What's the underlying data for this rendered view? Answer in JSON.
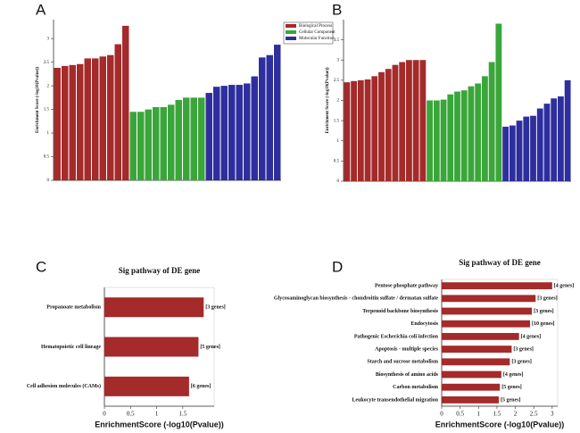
{
  "chart_data": [
    {
      "type": "bar",
      "panel": "A",
      "ylabel": "Enrichment Score (-log10(Pvalue))",
      "categories": [
        null,
        null,
        null,
        null,
        null,
        null,
        null,
        null,
        null,
        null,
        null,
        null,
        null,
        null,
        null,
        null,
        null,
        null,
        null,
        null,
        null,
        null,
        null,
        null,
        null,
        null,
        null,
        null,
        null,
        null
      ],
      "series": [
        {
          "name": "Biological Process",
          "color": "#a52a2a",
          "values": [
            2.38,
            2.42,
            2.44,
            2.46,
            2.58,
            2.58,
            2.62,
            2.65,
            2.88,
            3.27,
            null,
            null,
            null,
            null,
            null,
            null,
            null,
            null,
            null,
            null,
            null,
            null,
            null,
            null,
            null,
            null,
            null,
            null,
            null,
            null
          ]
        },
        {
          "name": "Cellular Component",
          "color": "#3aa63a",
          "values": [
            null,
            null,
            null,
            null,
            null,
            null,
            null,
            null,
            null,
            null,
            1.45,
            1.45,
            1.5,
            1.55,
            1.55,
            1.6,
            1.7,
            1.75,
            1.75,
            1.75,
            null,
            null,
            null,
            null,
            null,
            null,
            null,
            null,
            null,
            null
          ]
        },
        {
          "name": "Molecular Function",
          "color": "#2e2e9e",
          "values": [
            null,
            null,
            null,
            null,
            null,
            null,
            null,
            null,
            null,
            null,
            null,
            null,
            null,
            null,
            null,
            null,
            null,
            null,
            null,
            null,
            1.85,
            1.98,
            2.0,
            2.02,
            2.02,
            2.05,
            2.2,
            2.6,
            2.65,
            2.87
          ]
        }
      ],
      "ylim": [
        0,
        3.4
      ],
      "yticks": [
        0,
        0.5,
        1,
        1.5,
        2,
        2.5,
        3
      ],
      "legend": "upper right"
    },
    {
      "type": "bar",
      "panel": "B",
      "ylabel": "Enrichment Score (-log10(Pvalue))",
      "categories": [
        null,
        null,
        null,
        null,
        null,
        null,
        null,
        null,
        null,
        null,
        null,
        null,
        null,
        null,
        null,
        null,
        null,
        null,
        null,
        null,
        null,
        null,
        null,
        null,
        null,
        null,
        null,
        null,
        null,
        null,
        null,
        null,
        null
      ],
      "series": [
        {
          "color": "#a52a2a",
          "values": [
            2.45,
            2.48,
            2.5,
            2.52,
            2.6,
            2.7,
            2.78,
            2.88,
            2.95,
            3.0,
            3.0,
            3.0,
            null,
            null,
            null,
            null,
            null,
            null,
            null,
            null,
            null,
            null,
            null,
            null,
            null,
            null,
            null,
            null,
            null,
            null,
            null,
            null,
            null
          ]
        },
        {
          "color": "#3aa63a",
          "values": [
            null,
            null,
            null,
            null,
            null,
            null,
            null,
            null,
            null,
            null,
            null,
            null,
            2.0,
            2.0,
            2.02,
            2.15,
            2.22,
            2.25,
            2.35,
            2.42,
            2.6,
            2.95,
            3.9,
            null,
            null,
            null,
            null,
            null,
            null,
            null,
            null,
            null,
            null
          ]
        },
        {
          "color": "#2e2e9e",
          "values": [
            null,
            null,
            null,
            null,
            null,
            null,
            null,
            null,
            null,
            null,
            null,
            null,
            null,
            null,
            null,
            null,
            null,
            null,
            null,
            null,
            null,
            null,
            null,
            1.35,
            1.38,
            1.5,
            1.6,
            1.62,
            1.8,
            1.92,
            2.05,
            2.1,
            2.5
          ]
        }
      ],
      "ylim": [
        0,
        4
      ],
      "yticks": [
        0,
        0.5,
        1,
        1.5,
        2,
        2.5,
        3,
        3.5
      ]
    },
    {
      "type": "barh",
      "panel": "C",
      "title": "Sig pathway of DE gene",
      "xlabel": "EnrichmentScore (-log10(Pvalue))",
      "categories": [
        "Propanoate metabolism",
        "Hematopoietic cell lineage",
        "Cell adhesion molecules (CAMs)"
      ],
      "values": [
        1.9,
        1.8,
        1.62
      ],
      "bar_labels": [
        "[3 genes]",
        "[5 genes]",
        "[6 genes]"
      ],
      "color": "#a52a2a",
      "xlim": [
        0,
        2.1
      ],
      "xticks": [
        0,
        0.5,
        1,
        1.5
      ]
    },
    {
      "type": "barh",
      "panel": "D",
      "title": "Sig pathway of DE gene",
      "xlabel": "EnrichmentScore (-log10(Pvalue))",
      "categories": [
        "Pentose phosphate pathway",
        "Glycosaminoglycan biosynthesis - chondroitin sulfate / dermatan sulfate",
        "Terpenoid backbone biosynthesis",
        "Endocytosis",
        "Pathogenic Escherichia coli infection",
        "Apoptosis - multiple species",
        "Starch and sucrose metabolism",
        "Biosynthesis of amino acids",
        "Carbon metabolism",
        "Leukocyte transendothelial migration"
      ],
      "values": [
        3.0,
        2.55,
        2.45,
        2.4,
        2.1,
        1.9,
        1.85,
        1.62,
        1.58,
        1.55
      ],
      "bar_labels": [
        "[4 genes]",
        "[3 genes]",
        "[3 genes]",
        "[10 genes]",
        "[4 genes]",
        "[3 genes]",
        "[3 genes]",
        "[4 genes]",
        "[5 genes]",
        "[5 genes]"
      ],
      "color": "#a52a2a",
      "xlim": [
        0,
        3.15
      ],
      "xticks": [
        0,
        0.5,
        1,
        1.5,
        2,
        2.5,
        3
      ]
    }
  ]
}
